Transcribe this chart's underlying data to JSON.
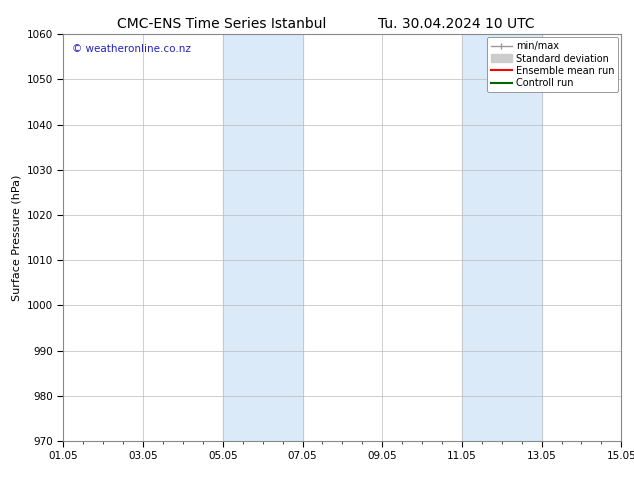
{
  "title1": "CMC-ENS Time Series Istanbul",
  "title2": "Tu. 30.04.2024 10 UTC",
  "ylabel": "Surface Pressure (hPa)",
  "ylim": [
    970,
    1060
  ],
  "yticks": [
    970,
    980,
    990,
    1000,
    1010,
    1020,
    1030,
    1040,
    1050,
    1060
  ],
  "xtick_labels": [
    "01.05",
    "03.05",
    "05.05",
    "07.05",
    "09.05",
    "11.05",
    "13.05",
    "15.05"
  ],
  "xtick_positions": [
    0,
    2,
    4,
    6,
    8,
    10,
    12,
    14
  ],
  "xlim": [
    0,
    14
  ],
  "shade_bands": [
    {
      "xstart": 4,
      "xend": 6
    },
    {
      "xstart": 10,
      "xend": 12
    }
  ],
  "shade_color": "#daeaf8",
  "watermark_text": "© weatheronline.co.nz",
  "watermark_color": "#2222bb",
  "legend_entries": [
    {
      "label": "min/max",
      "color": "#999999"
    },
    {
      "label": "Standard deviation",
      "color": "#cccccc"
    },
    {
      "label": "Ensemble mean run",
      "color": "#ff0000"
    },
    {
      "label": "Controll run",
      "color": "#006600"
    }
  ],
  "background_color": "#ffffff",
  "grid_color": "#bbbbbb",
  "title_fontsize": 10,
  "label_fontsize": 8,
  "tick_fontsize": 7.5,
  "legend_fontsize": 7
}
